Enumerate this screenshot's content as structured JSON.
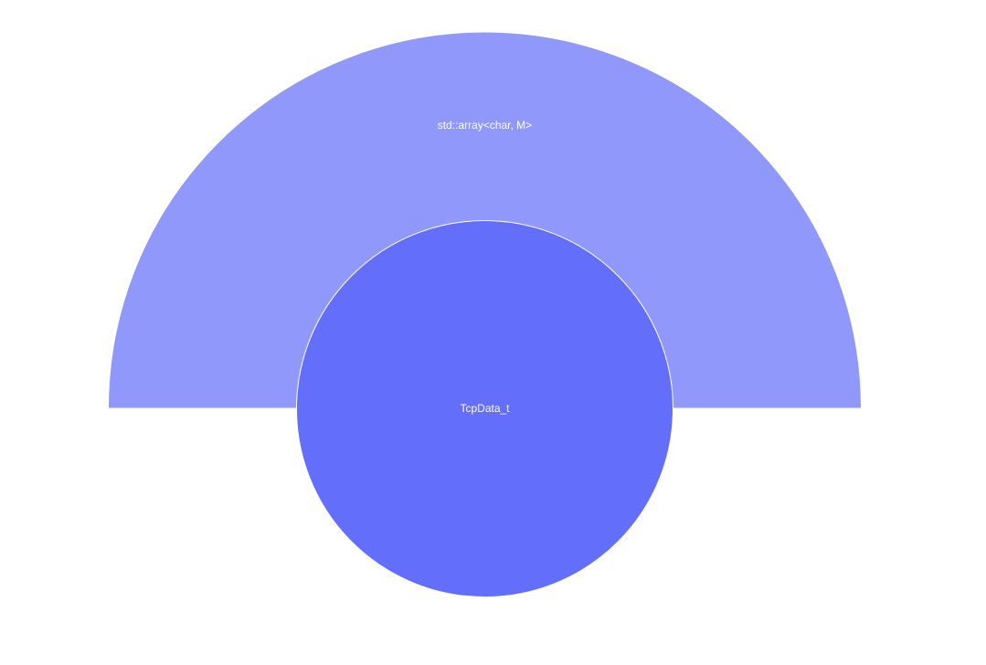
{
  "chart_data": {
    "type": "sunburst",
    "title": "",
    "root": {
      "label": "TcpData_t",
      "value": 1,
      "color": "#636efa",
      "children": [
        {
          "label": "std::array<char, M>",
          "value": 1,
          "color": "#9099fb"
        }
      ]
    }
  }
}
